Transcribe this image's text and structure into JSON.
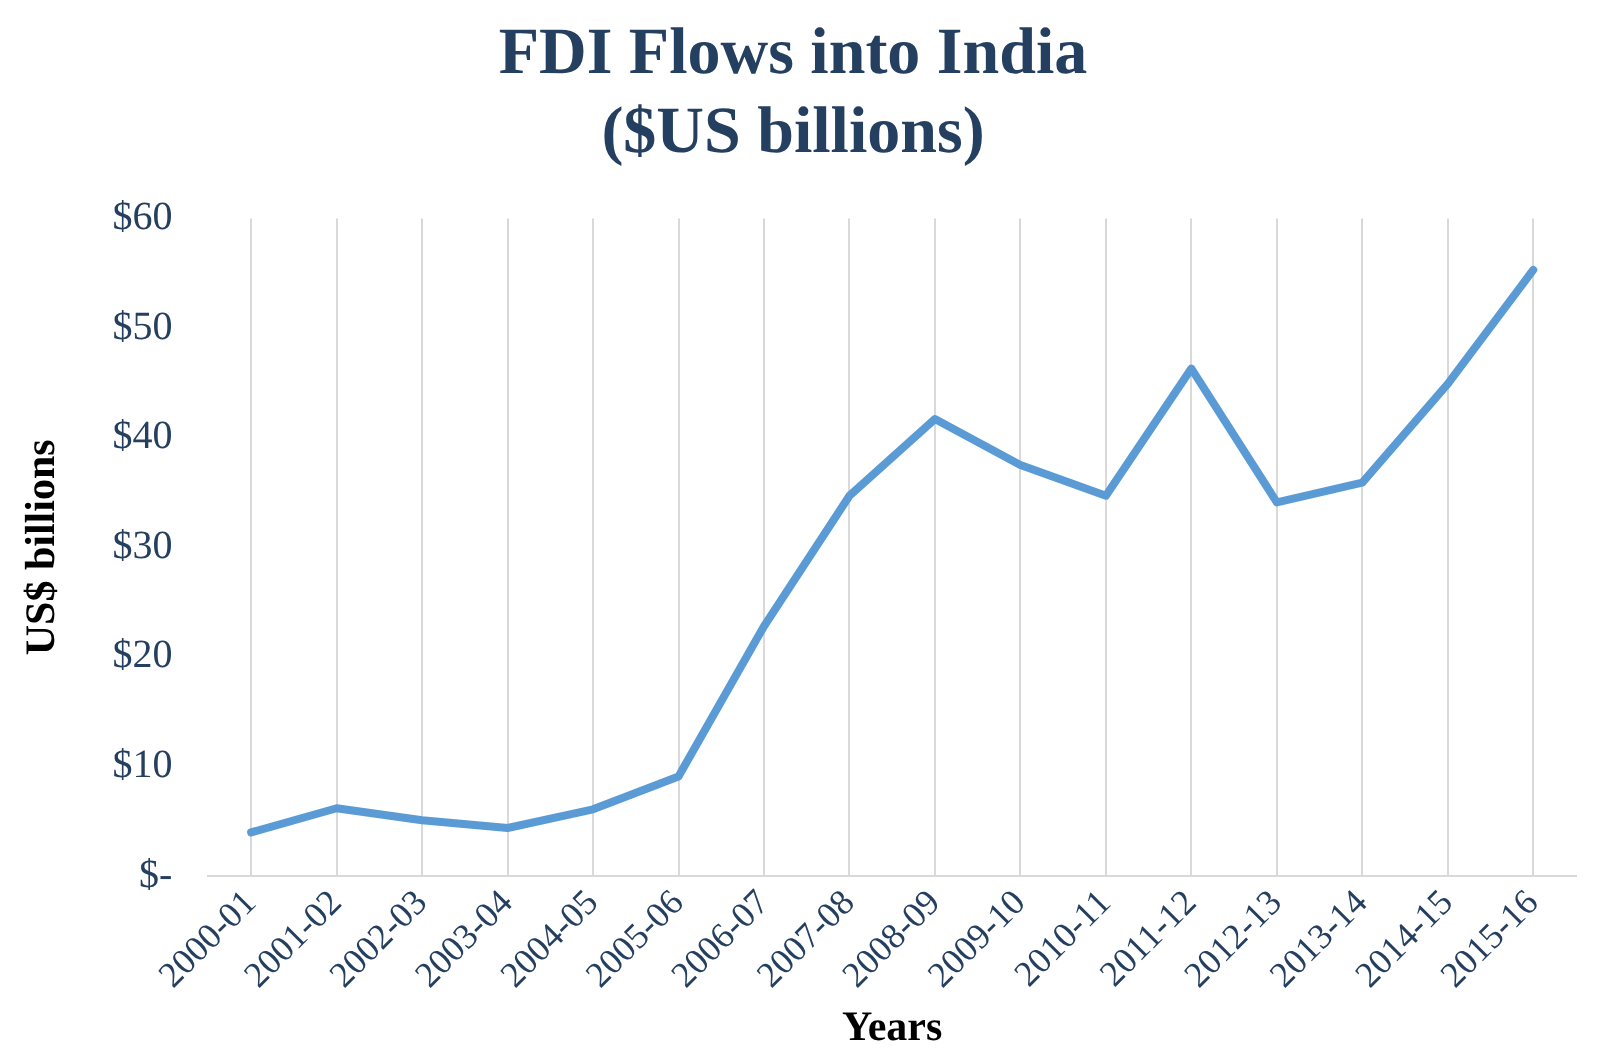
{
  "chart_data": {
    "type": "line",
    "title": [
      "FDI Flows into India",
      "($US billions)"
    ],
    "xlabel": "Years",
    "ylabel": "US$ billions",
    "categories": [
      "2000-01",
      "2001-02",
      "2002-03",
      "2003-04",
      "2004-05",
      "2005-06",
      "2006-07",
      "2007-08",
      "2008-09",
      "2009-10",
      "2010-11",
      "2011-12",
      "2012-13",
      "2013-14",
      "2014-15",
      "2015-16"
    ],
    "series": [
      {
        "color": "#5b9bd5",
        "values": [
          4.0,
          6.2,
          5.1,
          4.4,
          6.1,
          9.1,
          22.8,
          34.7,
          41.7,
          37.5,
          34.7,
          46.3,
          34.1,
          35.9,
          44.9,
          55.3
        ]
      }
    ],
    "ylim": [
      0,
      60
    ],
    "yticks": [
      {
        "value": 0,
        "label": "$-"
      },
      {
        "value": 10,
        "label": "$10"
      },
      {
        "value": 20,
        "label": "$20"
      },
      {
        "value": 30,
        "label": "$30"
      },
      {
        "value": 40,
        "label": "$40"
      },
      {
        "value": 50,
        "label": "$50"
      },
      {
        "value": 60,
        "label": "$60"
      }
    ],
    "grid": "x",
    "legend": false,
    "marker": "none",
    "line_style": "solid"
  }
}
